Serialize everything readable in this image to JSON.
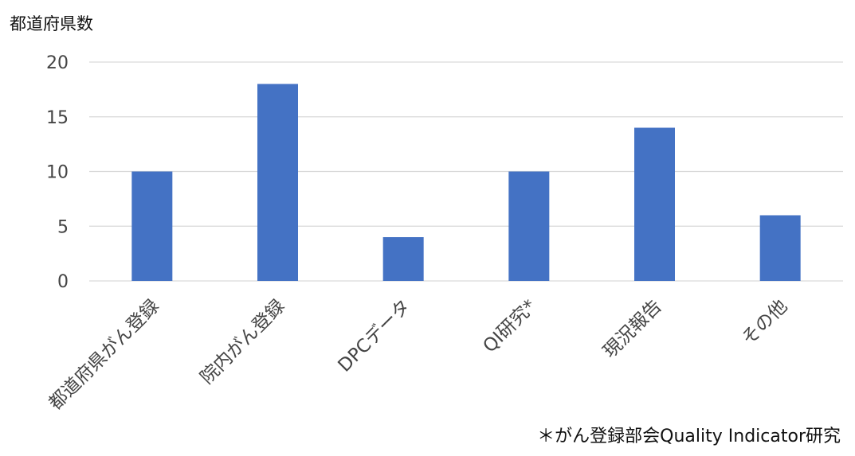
{
  "chart_data": {
    "type": "bar",
    "title": "",
    "xlabel": "",
    "ylabel": "都道府県数",
    "categories": [
      "都道府県がん登録",
      "院内がん登録",
      "DPCデータ",
      "QI研究*",
      "現況報告",
      "その他"
    ],
    "values": [
      10,
      18,
      4,
      10,
      14,
      6
    ],
    "ylim": [
      0,
      20
    ],
    "yticks": [
      0,
      5,
      10,
      15,
      20
    ],
    "grid": true,
    "bar_color": "#4472C4",
    "grid_color": "#D9D9D9"
  },
  "footnote": "＊がん登録部会Quality Indicator研究"
}
